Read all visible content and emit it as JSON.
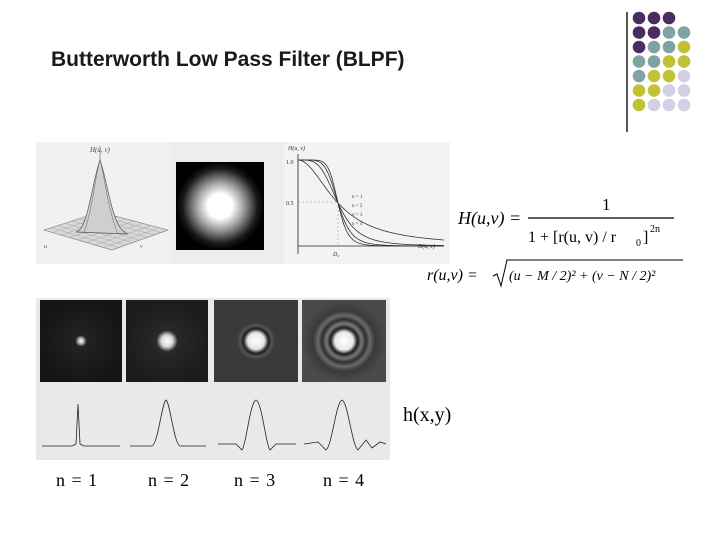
{
  "slide": {
    "title": "Butterworth Low Pass Filter (BLPF)",
    "h_label": "h(x,y)",
    "n_labels": [
      "n = 1",
      "n = 2",
      "n = 3",
      "n = 4"
    ]
  },
  "top_figure": {
    "surface_axis_label": "H(u, v)",
    "surface_u": "u",
    "surface_v": "v",
    "plot_ylabel": "H(u, v)",
    "plot_xlabel": "D(u, v)",
    "tick_one": "1.0",
    "tick_half": "0.5",
    "tick_d0": "D₀",
    "legend": [
      "n = 1",
      "n = 2",
      "n = 3",
      "n = 4"
    ]
  },
  "formula": {
    "lhs": "H(u,v) =",
    "numerator": "1",
    "den_part1": "1 + [r(u, v) / r",
    "den_sub": "0",
    "den_part2": "]",
    "den_exp": "2n",
    "r_lhs": "r(u,v) =",
    "r_rad": "(u − M / 2)² + (v − N / 2)²"
  },
  "colors": {
    "purple": "#4a2c63",
    "teal": "#7fa3a3",
    "olive": "#c2c035",
    "lavender": "#d3d0e3"
  }
}
